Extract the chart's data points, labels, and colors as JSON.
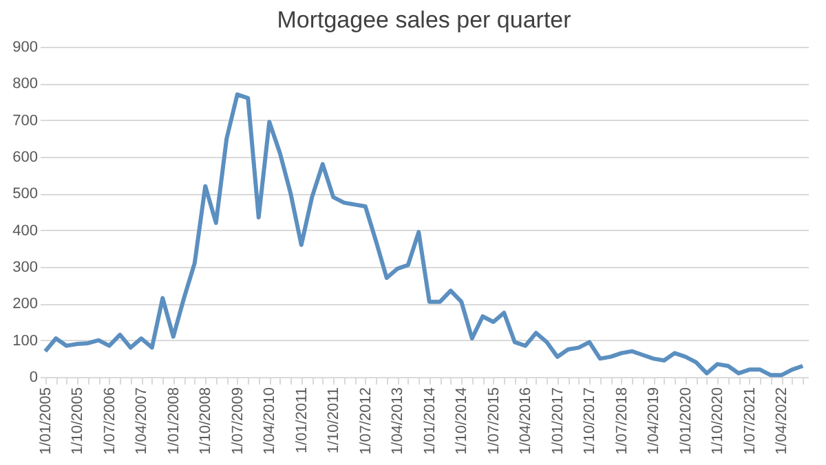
{
  "chart_data": {
    "type": "line",
    "title": "Mortgagee sales per quarter",
    "categories": [
      "1/01/2005",
      null,
      null,
      "1/10/2005",
      null,
      null,
      "1/07/2006",
      null,
      null,
      "1/04/2007",
      null,
      null,
      "1/01/2008",
      null,
      null,
      "1/10/2008",
      null,
      null,
      "1/07/2009",
      null,
      null,
      "1/04/2010",
      null,
      null,
      "1/01/2011",
      null,
      null,
      "1/10/2011",
      null,
      null,
      "1/07/2012",
      null,
      null,
      "1/04/2013",
      null,
      null,
      "1/01/2014",
      null,
      null,
      "1/10/2014",
      null,
      null,
      "1/07/2015",
      null,
      null,
      "1/04/2016",
      null,
      null,
      "1/01/2017",
      null,
      null,
      "1/10/2017",
      null,
      null,
      "1/07/2018",
      null,
      null,
      "1/04/2019",
      null,
      null,
      "1/01/2020",
      null,
      null,
      "1/10/2020",
      null,
      null,
      "1/07/2021",
      null,
      null,
      "1/04/2022",
      null,
      null
    ],
    "series": [
      {
        "color": "#5b8fc0",
        "values": [
          70,
          105,
          85,
          90,
          92,
          100,
          85,
          115,
          80,
          105,
          80,
          215,
          110,
          215,
          310,
          520,
          420,
          650,
          770,
          760,
          435,
          695,
          610,
          500,
          360,
          490,
          580,
          490,
          475,
          470,
          465,
          370,
          270,
          295,
          305,
          395,
          205,
          205,
          235,
          205,
          105,
          165,
          150,
          175,
          95,
          85,
          120,
          95,
          55,
          75,
          80,
          95,
          50,
          55,
          65,
          70,
          60,
          50,
          45,
          65,
          55,
          40,
          10,
          35,
          30,
          10,
          20,
          20,
          5,
          5,
          20,
          30
        ]
      }
    ],
    "ylim": [
      0,
      900
    ],
    "yticks": [
      0,
      100,
      200,
      300,
      400,
      500,
      600,
      700,
      800,
      900
    ],
    "grid": "y",
    "marker": "none",
    "line_style": "solid"
  }
}
